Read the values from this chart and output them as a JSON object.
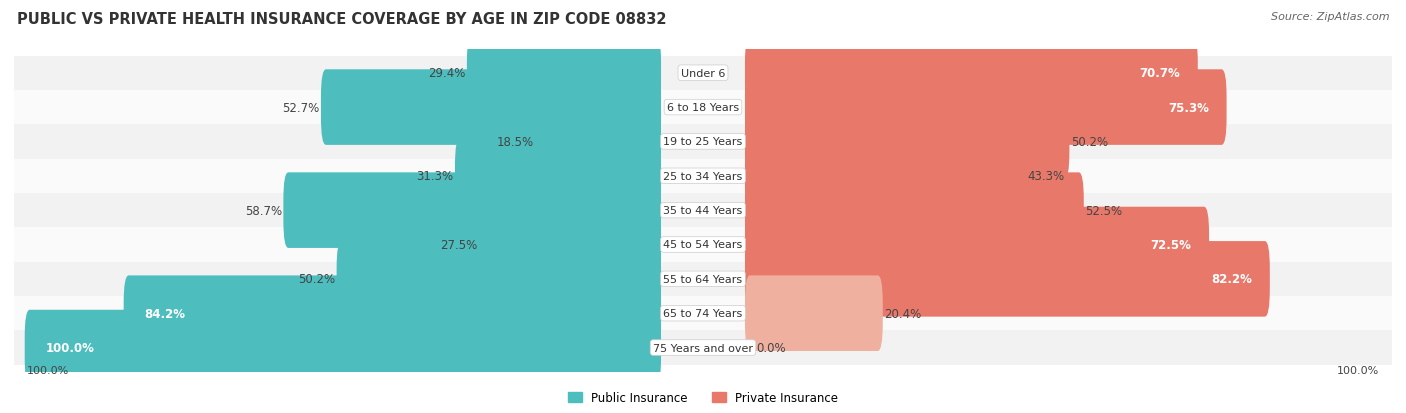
{
  "title": "PUBLIC VS PRIVATE HEALTH INSURANCE COVERAGE BY AGE IN ZIP CODE 08832",
  "source": "Source: ZipAtlas.com",
  "categories": [
    "Under 6",
    "6 to 18 Years",
    "19 to 25 Years",
    "25 to 34 Years",
    "35 to 44 Years",
    "45 to 54 Years",
    "55 to 64 Years",
    "65 to 74 Years",
    "75 Years and over"
  ],
  "public_values": [
    29.4,
    52.7,
    18.5,
    31.3,
    58.7,
    27.5,
    50.2,
    84.2,
    100.0
  ],
  "private_values": [
    70.7,
    75.3,
    50.2,
    43.3,
    52.5,
    72.5,
    82.2,
    20.4,
    0.0
  ],
  "public_color": "#4dbdbe",
  "private_color_strong": "#e8796a",
  "private_color_light": "#f0b0a0",
  "row_bg_even": "#f2f2f2",
  "row_bg_odd": "#fafafa",
  "title_fontsize": 10.5,
  "source_fontsize": 8,
  "label_fontsize": 8.5,
  "legend_fontsize": 8.5,
  "axis_label_fontsize": 8
}
